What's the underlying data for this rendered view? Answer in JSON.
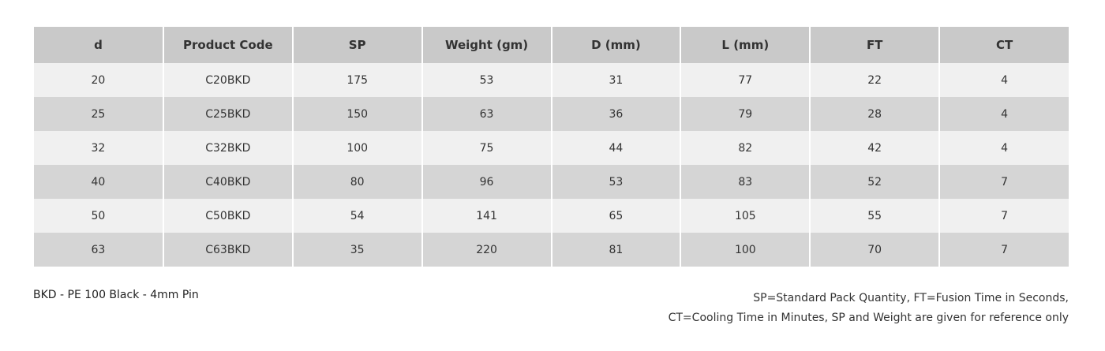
{
  "table": {
    "headers": [
      "d",
      "Product Code",
      "SP",
      "Weight (gm)",
      "D (mm)",
      "L (mm)",
      "FT",
      "CT"
    ],
    "rows": [
      [
        "20",
        "C20BKD",
        "175",
        "53",
        "31",
        "77",
        "22",
        "4"
      ],
      [
        "25",
        "C25BKD",
        "150",
        "63",
        "36",
        "79",
        "28",
        "4"
      ],
      [
        "32",
        "C32BKD",
        "100",
        "75",
        "44",
        "82",
        "42",
        "4"
      ],
      [
        "40",
        "C40BKD",
        "80",
        "96",
        "53",
        "83",
        "52",
        "7"
      ],
      [
        "50",
        "C50BKD",
        "54",
        "141",
        "65",
        "105",
        "55",
        "7"
      ],
      [
        "63",
        "C63BKD",
        "35",
        "220",
        "81",
        "100",
        "70",
        "7"
      ]
    ]
  },
  "footer": {
    "left_note": "BKD - PE 100 Black - 4mm Pin",
    "right_notes": [
      "SP=Standard Pack Quantity, FT=Fusion Time in Seconds,",
      "CT=Cooling Time in Minutes, SP and Weight are given for reference only"
    ]
  }
}
